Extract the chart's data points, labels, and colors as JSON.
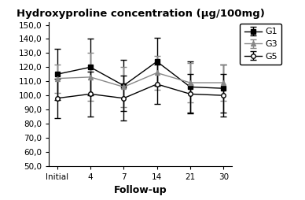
{
  "title": "Hydroxyproline concentration (μg/100mg)",
  "xlabel": "Follow-up",
  "x_labels": [
    "Initial",
    "4",
    "7",
    "14",
    "21",
    "30"
  ],
  "x_positions": [
    0,
    1,
    2,
    3,
    4,
    5
  ],
  "G1_mean": [
    115.0,
    120.0,
    107.0,
    124.0,
    106.0,
    105.0
  ],
  "G1_err": [
    18.0,
    20.0,
    18.0,
    17.0,
    18.0,
    17.0
  ],
  "G3_mean": [
    112.0,
    113.0,
    106.0,
    116.0,
    109.0,
    109.0
  ],
  "G3_err": [
    10.0,
    17.0,
    14.0,
    12.0,
    14.0,
    13.0
  ],
  "G5_mean": [
    98.0,
    101.0,
    98.0,
    108.0,
    101.0,
    100.0
  ],
  "G5_err": [
    14.0,
    16.0,
    16.0,
    14.0,
    14.0,
    15.0
  ],
  "ylim": [
    50.0,
    152.0
  ],
  "yticks": [
    50.0,
    60.0,
    70.0,
    80.0,
    90.0,
    100.0,
    110.0,
    120.0,
    130.0,
    140.0,
    150.0
  ],
  "ytick_labels": [
    "50,0",
    "60,0",
    "70,0",
    "80,0",
    "90,0",
    "100,0",
    "110,0",
    "120,0",
    "130,0",
    "140,0",
    "150,0"
  ],
  "color_G1": "#000000",
  "color_G3": "#888888",
  "color_G5": "#000000",
  "bg_color": "#ffffff",
  "title_fontsize": 9.5,
  "axis_label_fontsize": 9,
  "tick_fontsize": 7.5,
  "legend_fontsize": 8
}
